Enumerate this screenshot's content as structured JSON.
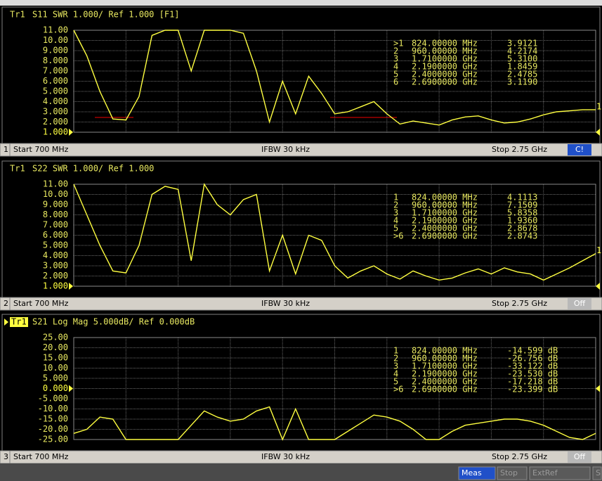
{
  "panels": [
    {
      "header": {
        "trace": "Tr1",
        "text": "S11 SWR 1.000/ Ref 1.000 [F1]"
      },
      "ylim": [
        1,
        11
      ],
      "yticks": [
        {
          "value": 11,
          "label": "11.00"
        },
        {
          "value": 10,
          "label": "10.00"
        },
        {
          "value": 9,
          "label": "9.000"
        },
        {
          "value": 8,
          "label": "8.000"
        },
        {
          "value": 7,
          "label": "7.000"
        },
        {
          "value": 6,
          "label": "6.000"
        },
        {
          "value": 5,
          "label": "5.000"
        },
        {
          "value": 4,
          "label": "4.000"
        },
        {
          "value": 3,
          "label": "3.000"
        },
        {
          "value": 2,
          "label": "2.000"
        },
        {
          "value": 1,
          "label": "1.000"
        }
      ],
      "reference_level": 1,
      "markers": [
        [
          ">1",
          "824.00000 MHz",
          "3.9121"
        ],
        [
          "2",
          "960.00000 MHz",
          "4.2174"
        ],
        [
          "3",
          "1.7100000 GHz",
          "5.3100"
        ],
        [
          "4",
          "2.1900000 GHz",
          "1.8459"
        ],
        [
          "5",
          "2.4000000 GHz",
          "2.4785"
        ],
        [
          "6",
          "2.6900000 GHz",
          "3.1190"
        ]
      ],
      "trace": [
        11,
        8.5,
        5,
        2.3,
        2.2,
        4.5,
        10.5,
        11,
        11,
        7,
        11,
        11,
        11,
        10.7,
        7,
        2,
        6,
        2.8,
        6.5,
        4.8,
        2.8,
        3,
        3.5,
        4,
        2.8,
        1.8,
        2.1,
        1.9,
        1.7,
        2.2,
        2.5,
        2.6,
        2.2,
        1.9,
        2,
        2.3,
        2.7,
        3,
        3.1,
        3.2,
        3.2
      ],
      "trace_label": "1",
      "footer": {
        "channel": "1",
        "start": "Start 700 MHz",
        "ifbw": "IFBW 30 kHz",
        "stop": "Stop 2.75 GHz",
        "button": "C!"
      }
    },
    {
      "header": {
        "trace": "Tr1",
        "text": "S22 SWR 1.000/ Ref 1.000"
      },
      "ylim": [
        1,
        11
      ],
      "yticks": [
        {
          "value": 11,
          "label": "11.00"
        },
        {
          "value": 10,
          "label": "10.00"
        },
        {
          "value": 9,
          "label": "9.000"
        },
        {
          "value": 8,
          "label": "8.000"
        },
        {
          "value": 7,
          "label": "7.000"
        },
        {
          "value": 6,
          "label": "6.000"
        },
        {
          "value": 5,
          "label": "5.000"
        },
        {
          "value": 4,
          "label": "4.000"
        },
        {
          "value": 3,
          "label": "3.000"
        },
        {
          "value": 2,
          "label": "2.000"
        },
        {
          "value": 1,
          "label": "1.000"
        }
      ],
      "reference_level": 1,
      "markers": [
        [
          "1",
          "824.00000 MHz",
          "4.1113"
        ],
        [
          "2",
          "960.00000 MHz",
          "7.1509"
        ],
        [
          "3",
          "1.7100000 GHz",
          "5.8358"
        ],
        [
          "4",
          "2.1900000 GHz",
          "1.9360"
        ],
        [
          "5",
          "2.4000000 GHz",
          "2.8678"
        ],
        [
          ">6",
          "2.6900000 GHz",
          "2.8743"
        ]
      ],
      "trace": [
        11,
        8,
        5,
        2.5,
        2.3,
        5,
        10,
        10.8,
        10.5,
        3.5,
        11,
        9,
        8,
        9.5,
        10,
        2.5,
        6,
        2.2,
        6,
        5.5,
        3,
        1.8,
        2.5,
        3,
        2.2,
        1.7,
        2.5,
        2,
        1.6,
        1.8,
        2.3,
        2.7,
        2.2,
        2.8,
        2.4,
        2.2,
        1.6,
        2.2,
        2.8,
        3.5,
        4.2
      ],
      "trace_label": "1",
      "footer": {
        "channel": "2",
        "start": "Start 700 MHz",
        "ifbw": "IFBW 30 kHz",
        "stop": "Stop 2.75 GHz",
        "button": "Off"
      }
    },
    {
      "header": {
        "trace": "Tr1",
        "text": "S21 Log Mag 5.000dB/ Ref 0.000dB"
      },
      "ylim": [
        -25,
        25
      ],
      "yticks": [
        {
          "value": 25,
          "label": "25.00"
        },
        {
          "value": 20,
          "label": "20.00"
        },
        {
          "value": 15,
          "label": "15.00"
        },
        {
          "value": 10,
          "label": "10.00"
        },
        {
          "value": 5,
          "label": "5.000"
        },
        {
          "value": 0,
          "label": "0.000"
        },
        {
          "value": -5,
          "label": "-5.000"
        },
        {
          "value": -10,
          "label": "-10.00"
        },
        {
          "value": -15,
          "label": "-15.00"
        },
        {
          "value": -20,
          "label": "-20.00"
        },
        {
          "value": -25,
          "label": "-25.00"
        }
      ],
      "reference_level": 0,
      "markers": [
        [
          "1",
          "824.00000 MHz",
          "-14.599 dB"
        ],
        [
          "2",
          "960.00000 MHz",
          "-26.756 dB"
        ],
        [
          "3",
          "1.7100000 GHz",
          "-33.122 dB"
        ],
        [
          "4",
          "2.1900000 GHz",
          "-23.530 dB"
        ],
        [
          "5",
          "2.4000000 GHz",
          "-17.218 dB"
        ],
        [
          ">6",
          "2.6900000 GHz",
          "-23.399 dB"
        ]
      ],
      "trace": [
        -22,
        -20,
        -14,
        -15,
        -25,
        -25,
        -25,
        -25,
        -25,
        -18,
        -11,
        -14,
        -16,
        -15,
        -11,
        -9,
        -25,
        -10,
        -25,
        -25,
        -25,
        -21,
        -17,
        -13,
        -14,
        -16,
        -20,
        -25,
        -25,
        -21,
        -18,
        -17,
        -16,
        -15,
        -15,
        -16,
        -18,
        -21,
        -24,
        -25,
        -22
      ],
      "footer": {
        "channel": "3",
        "start": "Start 700 MHz",
        "ifbw": "IFBW 30 kHz",
        "stop": "Stop 2.75 GHz",
        "button": "Off"
      }
    }
  ],
  "status": [
    "Meas",
    "Stop",
    "ExtRef",
    "S"
  ]
}
